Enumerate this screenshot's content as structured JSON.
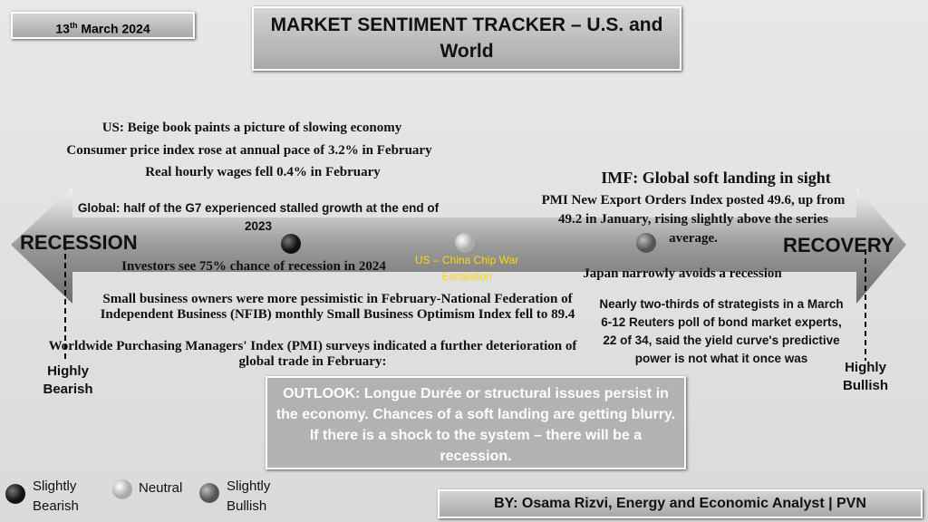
{
  "header": {
    "date": {
      "day": "13",
      "suffix": "th",
      "rest": "March 2024"
    },
    "title": "MARKET SENTIMENT TRACKER – U.S. and World"
  },
  "scale": {
    "left": "RECESSION",
    "right": "RECOVERY",
    "left_end": "Highly Bearish",
    "right_end": "Highly Bullish"
  },
  "left_notes": [
    "US: Beige book paints a picture of slowing economy",
    "Consumer price index rose at annual pace of 3.2% in February",
    "Real hourly wages fell 0.4% in February",
    "Global: half of the G7 experienced stalled growth at the end of 2023",
    "Investors see 75% chance of recession in 2024",
    "Small business owners were more pessimistic in February-National Federation of Independent Business (NFIB) monthly Small Business Optimism Index fell to 89.4",
    "Worldwide Purchasing Managers' Index (PMI) surveys indicated a further deterioration of global trade in February:"
  ],
  "center_note": "US – China Chip War Escalation",
  "right_notes": [
    "IMF: Global soft landing in sight",
    "PMI New Export Orders Index posted 49.6, up from 49.2 in January, rising slightly above the series average.",
    "Japan narrowly avoids a recession",
    "Nearly two-thirds of strategists in a March 6-12 Reuters poll of bond market experts, 22 of 34, said the yield curve's predictive power is not what it once was"
  ],
  "outlook": "OUTLOOK: Longue Durée or structural issues persist in the economy. Chances of a soft landing are getting blurry. If there is a shock to the system – there will be a recession.",
  "legend": [
    "Slightly Bearish",
    "Neutral",
    "Slightly Bullish"
  ],
  "footer": "BY: Osama Rizvi, Energy and Economic Analyst | PVN"
}
